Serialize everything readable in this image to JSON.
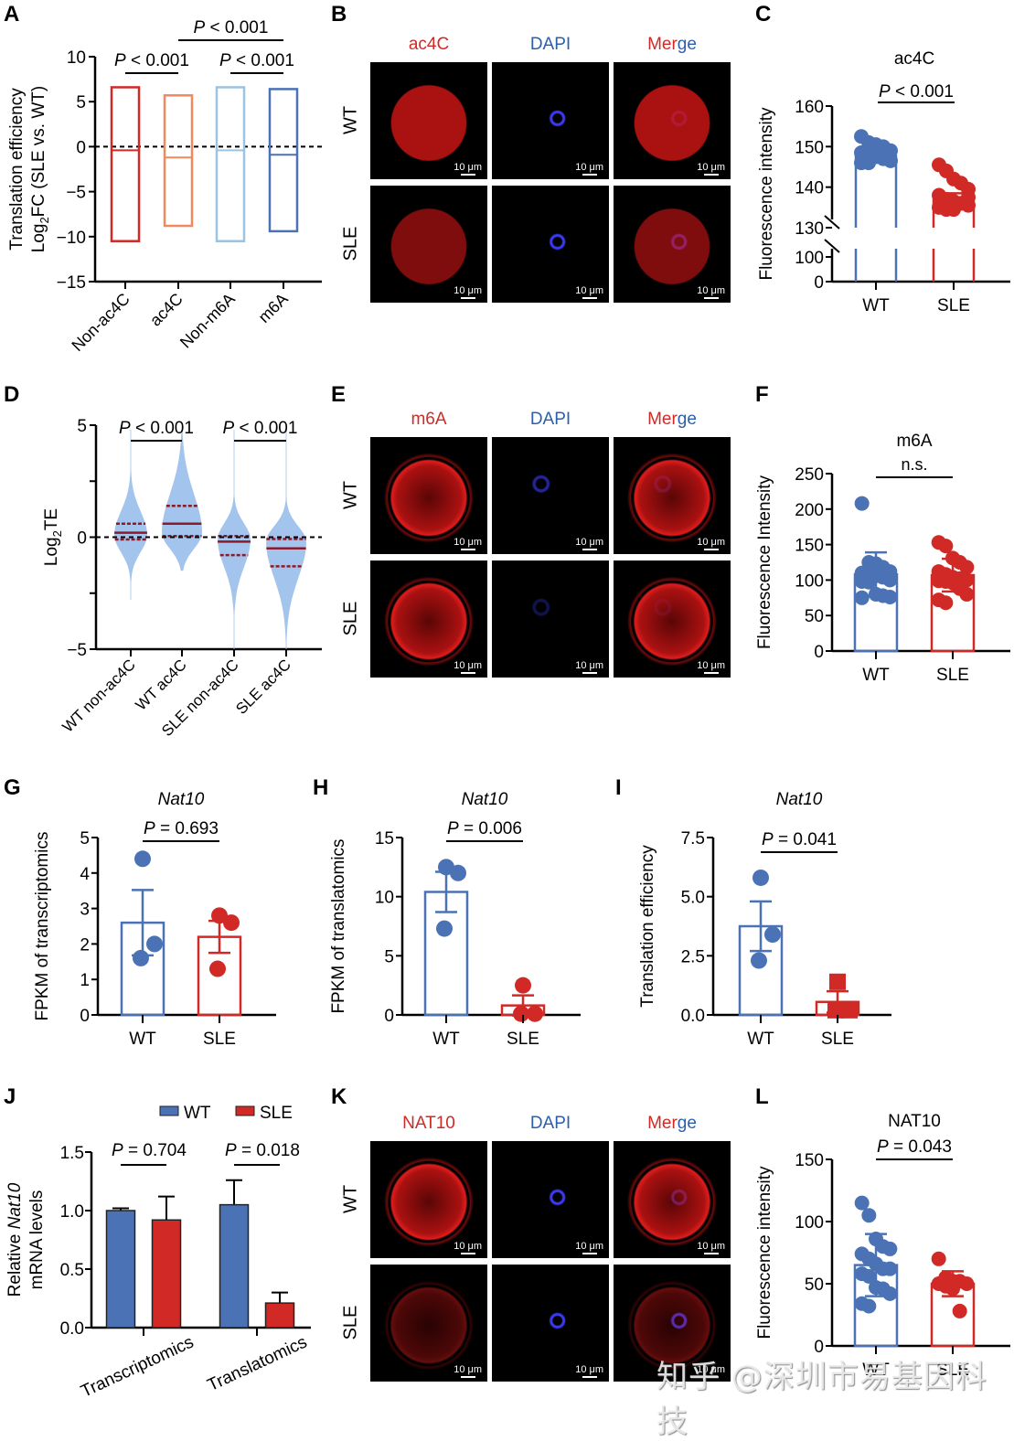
{
  "colors": {
    "red": "#d12a26",
    "orange": "#f08a5d",
    "light_blue": "#9cc3e0",
    "blue": "#4a72b4",
    "violin": "#a3c4ec",
    "median_red": "#8b1a2a",
    "dapi_blue": "#2a5fb0"
  },
  "panels": {
    "A": "A",
    "B": "B",
    "C": "C",
    "D": "D",
    "E": "E",
    "F": "F",
    "G": "G",
    "H": "H",
    "I": "I",
    "J": "J",
    "K": "K",
    "L": "L"
  },
  "micrographs": {
    "B": {
      "channels": [
        "ac4C",
        "DAPI",
        "Merge"
      ],
      "rows": [
        "WT",
        "SLE"
      ],
      "scale": "10 μm"
    },
    "E": {
      "channels": [
        "m6A",
        "DAPI",
        "Merge"
      ],
      "rows": [
        "WT",
        "SLE"
      ],
      "scale": "10 μm"
    },
    "K": {
      "channels": [
        "NAT10",
        "DAPI",
        "Merge"
      ],
      "rows": [
        "WT",
        "SLE"
      ],
      "scale": "10 μm"
    }
  },
  "merge_parts": {
    "first": "Mer",
    "second": "ge"
  },
  "watermark": "知乎 @深圳市易基因科技",
  "chart_data": [
    {
      "id": "A",
      "type": "box",
      "ylabel_line1": "Translation efficiency",
      "ylabel_line2_pre": "Log",
      "ylabel_line2_sub": "2",
      "ylabel_line2_post": "FC (SLE vs. WT)",
      "ylim": [
        -15,
        10
      ],
      "yticks": [
        10,
        5,
        0,
        -5,
        -10,
        -15
      ],
      "ytick_labels": [
        "10",
        "5",
        "0",
        "−5",
        "−10",
        "−15"
      ],
      "categories": [
        "Non-ac4C",
        "ac4C",
        "Non-m6A",
        "m6A"
      ],
      "boxes": [
        {
          "min": -10.5,
          "max": 6.6,
          "median": -0.4,
          "color": "#d12a26"
        },
        {
          "min": -8.8,
          "max": 5.7,
          "median": -1.2,
          "color": "#f08a5d"
        },
        {
          "min": -10.5,
          "max": 6.6,
          "median": -0.4,
          "color": "#9cc3e0"
        },
        {
          "min": -9.4,
          "max": 6.4,
          "median": -0.9,
          "color": "#4a72b4"
        }
      ],
      "reference_line": 0,
      "comparisons": [
        {
          "from": 0,
          "to": 1,
          "p_italic": "P",
          "p_rest": " < 0.001",
          "level": 0
        },
        {
          "from": 2,
          "to": 3,
          "p_italic": "P",
          "p_rest": " < 0.001",
          "level": 0
        },
        {
          "from": 1,
          "to": 3,
          "p_italic": "P",
          "p_rest": " < 0.001",
          "level": 1
        }
      ]
    },
    {
      "id": "C",
      "type": "bar_scatter_broken_axis",
      "title": "ac4C",
      "ylabel": "Fluorescence intensity",
      "ytick_labels_upper": [
        "160",
        "150",
        "140",
        "130"
      ],
      "yticks_upper": [
        160,
        150,
        140,
        130
      ],
      "ytick_labels_lower": [
        "100",
        "0"
      ],
      "yticks_lower": [
        100,
        0
      ],
      "categories": [
        "WT",
        "SLE"
      ],
      "bars": [
        {
          "mean": 148,
          "color": "#4a72b4",
          "points": [
            152.5,
            151,
            150.5,
            149.5,
            149,
            148.5,
            148,
            147.5,
            147,
            146.5,
            146,
            146,
            148.5,
            150
          ]
        },
        {
          "mean": 138.5,
          "color": "#d12a26",
          "points": [
            145.5,
            144,
            142,
            141,
            139.5,
            138,
            137,
            136.5,
            136,
            135.5,
            135,
            134.5,
            134.5,
            136,
            137.5
          ]
        }
      ],
      "comparison": {
        "p_italic": "P",
        "p_rest": " < 0.001"
      }
    },
    {
      "id": "D",
      "type": "violin",
      "ylabel_pre": "Log",
      "ylabel_sub": "2",
      "ylabel_post": "TE",
      "ylim": [
        -5,
        5
      ],
      "yticks": [
        5,
        2.5,
        0,
        -2.5,
        -5
      ],
      "ytick_labels": [
        "5",
        "",
        "0",
        "",
        "−5"
      ],
      "categories": [
        "WT non-ac4C",
        "WT ac4C",
        "SLE non-ac4C",
        "SLE ac4C"
      ],
      "violins": [
        {
          "q1": -0.1,
          "median": 0.2,
          "q3": 0.6,
          "min": -2.8,
          "max": 4.8,
          "peak": 0.1
        },
        {
          "q1": 0.05,
          "median": 0.6,
          "q3": 1.4,
          "min": -1.5,
          "max": 4.8,
          "peak": 0.2
        },
        {
          "q1": -0.8,
          "median": -0.2,
          "q3": 0.05,
          "min": -5,
          "max": 4.8,
          "peak": -0.1
        },
        {
          "q1": -1.3,
          "median": -0.5,
          "q3": -0.08,
          "min": -5,
          "max": 4.8,
          "peak": -0.2
        }
      ],
      "reference_line": 0,
      "comparisons": [
        {
          "from": 0,
          "to": 1,
          "p_italic": "P",
          "p_rest": " < 0.001"
        },
        {
          "from": 2,
          "to": 3,
          "p_italic": "P",
          "p_rest": " < 0.001"
        }
      ]
    },
    {
      "id": "F",
      "type": "bar_scatter",
      "title": "m6A",
      "ylabel": "Fluorescence Intensity",
      "ylim": [
        0,
        250
      ],
      "yticks": [
        0,
        50,
        100,
        150,
        200,
        250
      ],
      "ytick_labels": [
        "0",
        "50",
        "100",
        "150",
        "200",
        "250"
      ],
      "categories": [
        "WT",
        "SLE"
      ],
      "bars": [
        {
          "mean": 108,
          "sd": 31,
          "color": "#4a72b4",
          "points": [
            208,
            125,
            123,
            118,
            112,
            110,
            108,
            106,
            104,
            100,
            98,
            97,
            80,
            78,
            76,
            75
          ]
        },
        {
          "mean": 107,
          "sd": 23,
          "color": "#d12a26",
          "points": [
            153,
            148,
            131,
            125,
            118,
            112,
            108,
            104,
            102,
            100,
            99,
            98,
            96,
            88,
            80,
            72,
            68
          ]
        }
      ],
      "comparison": {
        "text": "n.s."
      }
    },
    {
      "id": "G",
      "type": "bar_scatter",
      "title": "Nat10",
      "ylabel": "FPKM of transcriptomics",
      "ylim": [
        0,
        5
      ],
      "yticks": [
        0,
        1,
        2,
        3,
        4,
        5
      ],
      "ytick_labels": [
        "0",
        "1",
        "2",
        "3",
        "4",
        "5"
      ],
      "categories": [
        "WT",
        "SLE"
      ],
      "bars": [
        {
          "mean": 2.6,
          "sem": 0.92,
          "color": "#4a72b4",
          "points": [
            4.4,
            2.0,
            1.6
          ]
        },
        {
          "mean": 2.2,
          "sem": 0.45,
          "color": "#d12a26",
          "points": [
            2.8,
            2.6,
            1.3
          ]
        }
      ],
      "comparison": {
        "p_italic": "P",
        "p_rest": " = 0.693"
      }
    },
    {
      "id": "H",
      "type": "bar_scatter",
      "title": "Nat10",
      "ylabel": "FPKM of translatomics",
      "ylim": [
        0,
        15
      ],
      "yticks": [
        0,
        5,
        10,
        15
      ],
      "ytick_labels": [
        "0",
        "5",
        "10",
        "15"
      ],
      "categories": [
        "WT",
        "SLE"
      ],
      "bars": [
        {
          "mean": 10.4,
          "sem": 1.7,
          "color": "#4a72b4",
          "points": [
            12.5,
            12.0,
            7.3
          ]
        },
        {
          "mean": 0.8,
          "sem": 0.85,
          "color": "#d12a26",
          "points": [
            2.5,
            0.1,
            0.1
          ]
        }
      ],
      "comparison": {
        "p_italic": "P",
        "p_rest": " = 0.006"
      }
    },
    {
      "id": "I",
      "type": "bar_scatter",
      "title": "Nat10",
      "ylabel": "Translation efficiency",
      "ylim": [
        0,
        7.5
      ],
      "yticks": [
        0,
        2.5,
        5,
        7.5
      ],
      "ytick_labels": [
        "0.0",
        "2.5",
        "5.0",
        "7.5"
      ],
      "categories": [
        "WT",
        "SLE"
      ],
      "bars": [
        {
          "mean": 3.75,
          "sem": 1.05,
          "color": "#4a72b4",
          "points": [
            5.8,
            3.4,
            2.3
          ]
        },
        {
          "mean": 0.55,
          "sem": 0.45,
          "color": "#d12a26",
          "points": [
            1.4,
            0.2,
            0.2
          ],
          "marker": "square"
        }
      ],
      "comparison": {
        "p_italic": "P",
        "p_rest": " = 0.041"
      }
    },
    {
      "id": "J",
      "type": "grouped_bar",
      "ylabel_line1_pre": "Relative ",
      "ylabel_line1_it": "Nat10",
      "ylabel_line2": "mRNA levels",
      "ylim": [
        0,
        1.5
      ],
      "yticks": [
        0,
        0.5,
        1.0,
        1.5
      ],
      "ytick_labels": [
        "0.0",
        "0.5",
        "1.0",
        "1.5"
      ],
      "categories": [
        "Transcriptomics",
        "Translatomics"
      ],
      "series": [
        {
          "name": "WT",
          "color": "#4a72b4",
          "values": [
            1.0,
            1.05
          ],
          "errors": [
            0.02,
            0.21
          ]
        },
        {
          "name": "SLE",
          "color": "#d12a26",
          "values": [
            0.92,
            0.21
          ],
          "errors": [
            0.2,
            0.09
          ]
        }
      ],
      "legend": "top",
      "comparisons": [
        {
          "group": 0,
          "p_italic": "P",
          "p_rest": " = 0.704"
        },
        {
          "group": 1,
          "p_italic": "P",
          "p_rest": " = 0.018"
        }
      ]
    },
    {
      "id": "L",
      "type": "bar_scatter",
      "title": "NAT10",
      "ylabel": "Fluorescence intensity",
      "ylim": [
        0,
        150
      ],
      "yticks": [
        0,
        50,
        100,
        150
      ],
      "ytick_labels": [
        "0",
        "50",
        "100",
        "150"
      ],
      "categories": [
        "WT",
        "SLE"
      ],
      "bars": [
        {
          "mean": 65,
          "sd": 25,
          "color": "#4a72b4",
          "points": [
            115,
            105,
            86,
            80,
            78,
            74,
            70,
            66,
            62,
            62,
            58,
            56,
            47,
            46,
            42,
            34,
            32
          ]
        },
        {
          "mean": 50,
          "sd": 10,
          "color": "#d12a26",
          "points": [
            70,
            55,
            52,
            52,
            50,
            50,
            48,
            46,
            28
          ]
        }
      ],
      "comparison": {
        "p_italic": "P",
        "p_rest": " = 0.043"
      }
    }
  ]
}
